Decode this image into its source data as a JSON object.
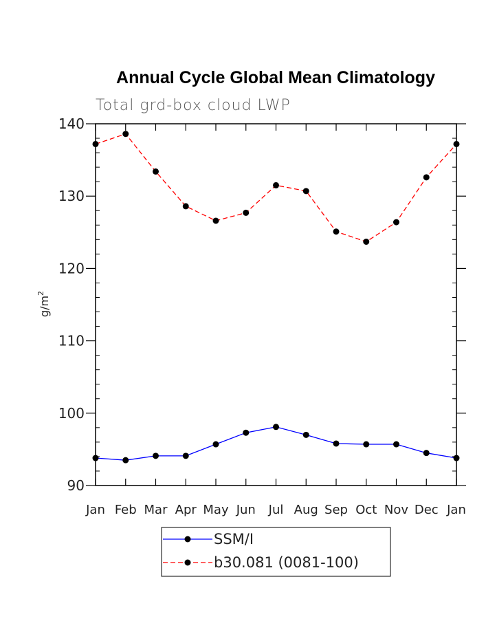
{
  "chart_data": {
    "type": "line",
    "title": "Annual Cycle Global Mean Climatology",
    "subtitle": "Total grd-box cloud LWP",
    "ylabel": "g/m",
    "ylabel_sup": "2",
    "xlabel": "",
    "ylim": [
      90,
      140
    ],
    "yticks": [
      90,
      100,
      110,
      120,
      130,
      140
    ],
    "categories": [
      "Jan",
      "Feb",
      "Mar",
      "Apr",
      "May",
      "Jun",
      "Jul",
      "Aug",
      "Sep",
      "Oct",
      "Nov",
      "Dec",
      "Jan"
    ],
    "series": [
      {
        "name": "SSM/I",
        "color": "#0000ff",
        "style": "solid",
        "values": [
          93.8,
          93.5,
          94.1,
          94.1,
          95.7,
          97.3,
          98.1,
          97.0,
          95.8,
          95.7,
          95.7,
          94.5,
          93.8
        ]
      },
      {
        "name": "b30.081 (0081-100)",
        "color": "#ff0000",
        "style": "dashed",
        "values": [
          137.2,
          138.6,
          133.4,
          128.6,
          126.6,
          127.7,
          131.5,
          130.7,
          125.1,
          123.7,
          126.4,
          132.6,
          137.2
        ]
      }
    ],
    "legend_position": "bottom-center"
  }
}
